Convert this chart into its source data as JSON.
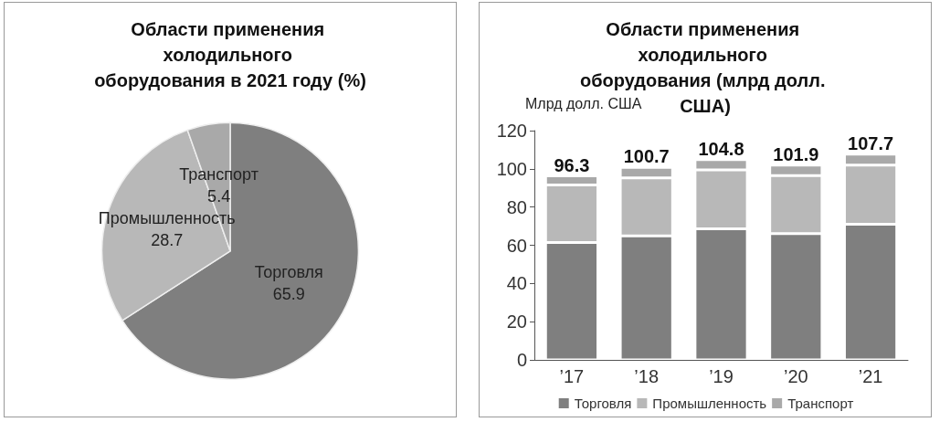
{
  "chart_data": [
    {
      "type": "pie",
      "title": "Области применения холодильного оборудования в 2021 году (%)",
      "categories": [
        "Торговля",
        "Промышленность",
        "Транспорт"
      ],
      "values": [
        65.9,
        28.7,
        5.4
      ],
      "colors": [
        "#7f7f7f",
        "#b8b8b8",
        "#a9a9a9"
      ],
      "data_labels": true,
      "legend": false
    },
    {
      "type": "bar",
      "stacked": true,
      "title": "Области применения холодильного оборудования (млрд долл. США)",
      "ylabel": "Млрд долл. США",
      "categories": [
        "’17",
        "’18",
        "’19",
        "’20",
        "’21"
      ],
      "series": [
        {
          "name": "Торговля",
          "color": "#7f7f7f",
          "values": [
            61.4,
            64.9,
            68.6,
            66.1,
            71.0
          ]
        },
        {
          "name": "Промышленность",
          "color": "#b8b8b8",
          "values": [
            30.1,
            30.3,
            30.8,
            30.4,
            30.9
          ]
        },
        {
          "name": "Транспорт",
          "color": "#a9a9a9",
          "values": [
            4.8,
            5.5,
            5.4,
            5.4,
            5.8
          ]
        }
      ],
      "totals": [
        "96.3",
        "100.7",
        "104.8",
        "101.9",
        "107.7"
      ],
      "ylim": [
        0,
        120
      ],
      "yticks": [
        0,
        20,
        40,
        60,
        80,
        100,
        120
      ],
      "grid": false,
      "legend": "bottom"
    }
  ]
}
